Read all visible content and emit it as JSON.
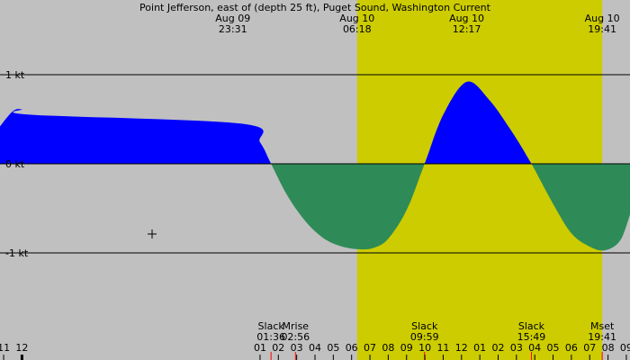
{
  "chart_data": {
    "type": "area",
    "title": "Point Jefferson, east of (depth 25 ft), Puget Sound, Washington Current",
    "xlim": [
      "Aug 09 10:48",
      "Aug 10 21:12"
    ],
    "ylim": [
      -2.0,
      1.8
    ],
    "y_ticks": [
      {
        "value": 1,
        "label": "1 kt"
      },
      {
        "value": 0,
        "label": "0 kt"
      },
      {
        "value": -1,
        "label": "-1 kt"
      }
    ],
    "x_ticks": [
      {
        "time": "Aug 09 11:00",
        "label": "11"
      },
      {
        "time": "Aug 09 12:00",
        "label": "12"
      },
      {
        "time": "Aug 10 01:00",
        "label": "01"
      },
      {
        "time": "Aug 10 02:00",
        "label": "02"
      },
      {
        "time": "Aug 10 03:00",
        "label": "03"
      },
      {
        "time": "Aug 10 04:00",
        "label": "04"
      },
      {
        "time": "Aug 10 05:00",
        "label": "05"
      },
      {
        "time": "Aug 10 06:00",
        "label": "06"
      },
      {
        "time": "Aug 10 07:00",
        "label": "07"
      },
      {
        "time": "Aug 10 08:00",
        "label": "08"
      },
      {
        "time": "Aug 10 09:00",
        "label": "09"
      },
      {
        "time": "Aug 10 10:00",
        "label": "10"
      },
      {
        "time": "Aug 10 11:00",
        "label": "11"
      },
      {
        "time": "Aug 10 12:00",
        "label": "12"
      },
      {
        "time": "Aug 10 13:00",
        "label": "01"
      },
      {
        "time": "Aug 10 14:00",
        "label": "02"
      },
      {
        "time": "Aug 10 15:00",
        "label": "03"
      },
      {
        "time": "Aug 10 16:00",
        "label": "04"
      },
      {
        "time": "Aug 10 17:00",
        "label": "05"
      },
      {
        "time": "Aug 10 18:00",
        "label": "06"
      },
      {
        "time": "Aug 10 19:00",
        "label": "07"
      },
      {
        "time": "Aug 10 20:00",
        "label": "08"
      },
      {
        "time": "Aug 10 21:00",
        "label": "09"
      }
    ],
    "top_labels": [
      {
        "time": "Aug 09 23:31",
        "date": "Aug 09",
        "clock": "23:31"
      },
      {
        "time": "Aug 10 06:18",
        "date": "Aug 10",
        "clock": "06:18"
      },
      {
        "time": "Aug 10 12:17",
        "date": "Aug 10",
        "clock": "12:17"
      },
      {
        "time": "Aug 10 19:41",
        "date": "Aug 10",
        "clock": "19:41"
      }
    ],
    "events": [
      {
        "time": "Aug 10 01:36",
        "label": "Slack",
        "clock": "01:36"
      },
      {
        "time": "Aug 10 02:56",
        "label": "Mrise",
        "clock": "02:56"
      },
      {
        "time": "Aug 10 09:59",
        "label": "Slack",
        "clock": "09:59"
      },
      {
        "time": "Aug 10 15:49",
        "label": "Slack",
        "clock": "15:49"
      },
      {
        "time": "Aug 10 19:41",
        "label": "Mset",
        "clock": "19:41"
      }
    ],
    "daylight": {
      "start": "Aug 10 06:18",
      "end": "Aug 10 19:41"
    },
    "series": [
      {
        "x": [
          "Aug 09 10:48",
          "Aug 09 11:30",
          "Aug 09 12:00",
          "Aug 09 12:30",
          "Aug 10 00:00",
          "Aug 10 01:00",
          "Aug 10 01:36",
          "Aug 10 02:30",
          "Aug 10 03:30",
          "Aug 10 04:30",
          "Aug 10 05:30",
          "Aug 10 06:30",
          "Aug 10 07:15",
          "Aug 10 08:00",
          "Aug 10 09:00",
          "Aug 10 09:59",
          "Aug 10 11:00",
          "Aug 10 12:17",
          "Aug 10 13:30",
          "Aug 10 14:45",
          "Aug 10 15:49",
          "Aug 10 17:00",
          "Aug 10 18:00",
          "Aug 10 19:00",
          "Aug 10 19:51",
          "Aug 10 20:40",
          "Aug 10 21:12"
        ],
        "y": [
          0.42,
          0.59,
          0.61,
          0.55,
          0.45,
          0.24,
          0.0,
          -0.36,
          -0.65,
          -0.84,
          -0.93,
          -0.96,
          -0.94,
          -0.84,
          -0.52,
          0.0,
          0.55,
          0.92,
          0.72,
          0.36,
          0.0,
          -0.45,
          -0.78,
          -0.93,
          -0.97,
          -0.86,
          -0.57
        ]
      }
    ],
    "colors": {
      "background": "#c0c0c0",
      "daylight": "#cccc00",
      "flood": "#0000ff",
      "ebb": "#2e8b57"
    }
  }
}
